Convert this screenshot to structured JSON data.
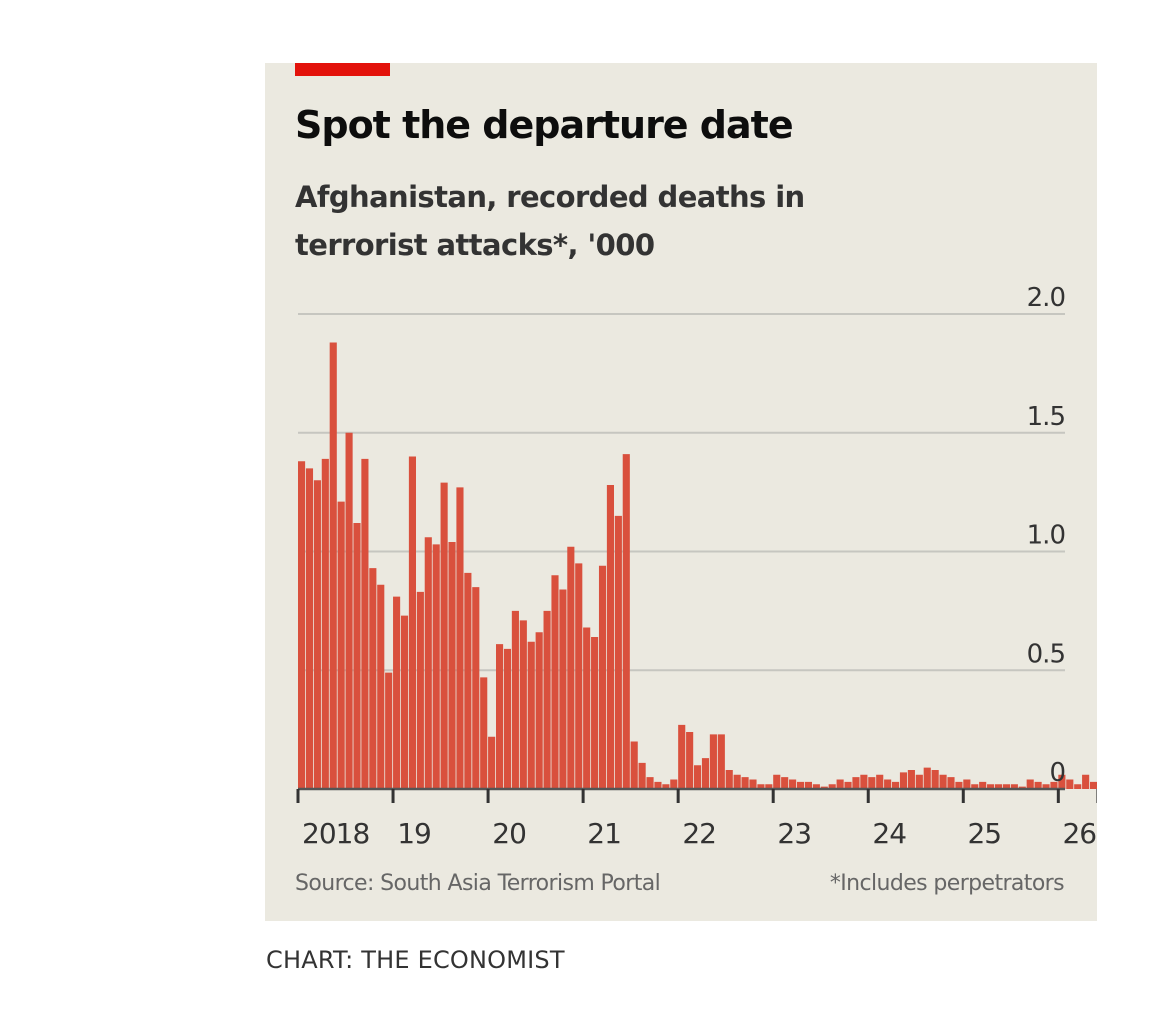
{
  "card": {
    "title": "Spot the departure date",
    "subtitle": "Afghanistan, recorded deaths in terrorist attacks*, '000",
    "source": "Source: South Asia Terrorism Portal",
    "footnote": "*Includes perpetrators"
  },
  "credit": "CHART: THE ECONOMIST",
  "colors": {
    "bar": "#d9503d",
    "accent": "#e3120b",
    "background": "#ebe9e0",
    "gridline": "#c6c6c0"
  },
  "chart_data": {
    "type": "bar",
    "title": "Spot the departure date",
    "subtitle": "Afghanistan, recorded deaths in terrorist attacks*, '000",
    "xlabel": "",
    "ylabel": "",
    "ylim": [
      0,
      2.0
    ],
    "yticks": [
      0,
      0.5,
      1.0,
      1.5,
      2.0
    ],
    "ytick_labels": [
      "0",
      "0.5",
      "1.0",
      "1.5",
      "2.0"
    ],
    "y_axis_position": "right",
    "grid": true,
    "xtick_labels": [
      "2018",
      "19",
      "20",
      "21",
      "22",
      "23",
      "24",
      "25",
      "26"
    ],
    "x_start": "2018-01",
    "frequency": "monthly",
    "values": [
      1.38,
      1.35,
      1.3,
      1.39,
      1.88,
      1.21,
      1.5,
      1.12,
      1.39,
      0.93,
      0.86,
      0.49,
      0.81,
      0.73,
      1.4,
      0.83,
      1.06,
      1.03,
      1.29,
      1.04,
      1.27,
      0.91,
      0.85,
      0.47,
      0.22,
      0.61,
      0.59,
      0.75,
      0.71,
      0.62,
      0.66,
      0.75,
      0.9,
      0.84,
      1.02,
      0.95,
      0.68,
      0.64,
      0.94,
      1.28,
      1.15,
      1.41,
      0.2,
      0.11,
      0.05,
      0.03,
      0.02,
      0.04,
      0.27,
      0.24,
      0.1,
      0.13,
      0.23,
      0.23,
      0.08,
      0.06,
      0.05,
      0.04,
      0.02,
      0.02,
      0.06,
      0.05,
      0.04,
      0.03,
      0.03,
      0.02,
      0.01,
      0.02,
      0.04,
      0.03,
      0.05,
      0.06,
      0.05,
      0.06,
      0.04,
      0.03,
      0.07,
      0.08,
      0.06,
      0.09,
      0.08,
      0.06,
      0.05,
      0.03,
      0.04,
      0.02,
      0.03,
      0.02,
      0.02,
      0.02,
      0.02,
      0.01,
      0.04,
      0.03,
      0.02,
      0.03,
      0.06,
      0.04,
      0.02,
      0.06,
      0.03
    ]
  }
}
